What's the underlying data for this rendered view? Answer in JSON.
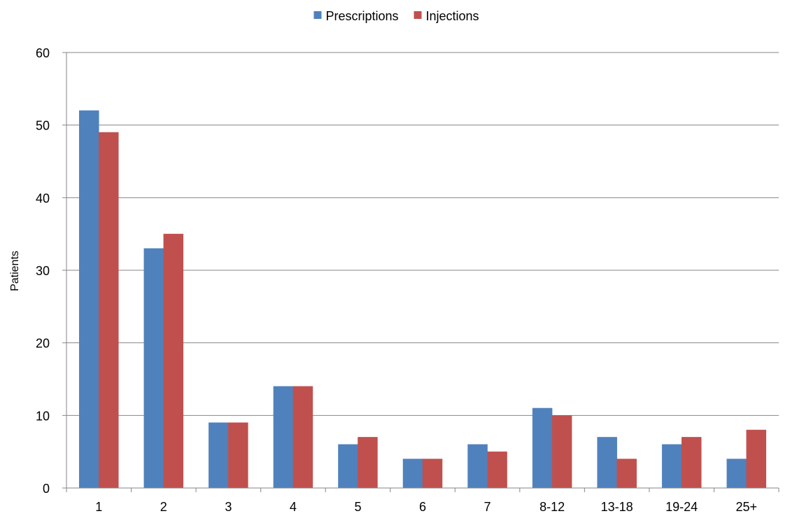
{
  "chart_data": {
    "type": "bar",
    "title": "",
    "xlabel": "",
    "ylabel": "Patients",
    "ylim": [
      0,
      60
    ],
    "yticks": [
      0,
      10,
      20,
      30,
      40,
      50,
      60
    ],
    "grid": true,
    "legend_position": "top-center",
    "categories": [
      "1",
      "2",
      "3",
      "4",
      "5",
      "6",
      "7",
      "8-12",
      "13-18",
      "19-24",
      "25+"
    ],
    "series": [
      {
        "name": "Prescriptions",
        "color": "#4F81BD",
        "values": [
          52,
          33,
          9,
          14,
          6,
          4,
          6,
          11,
          7,
          6,
          4
        ]
      },
      {
        "name": "Injections",
        "color": "#C0504D",
        "values": [
          49,
          35,
          9,
          14,
          7,
          4,
          5,
          10,
          4,
          7,
          8
        ]
      }
    ]
  }
}
